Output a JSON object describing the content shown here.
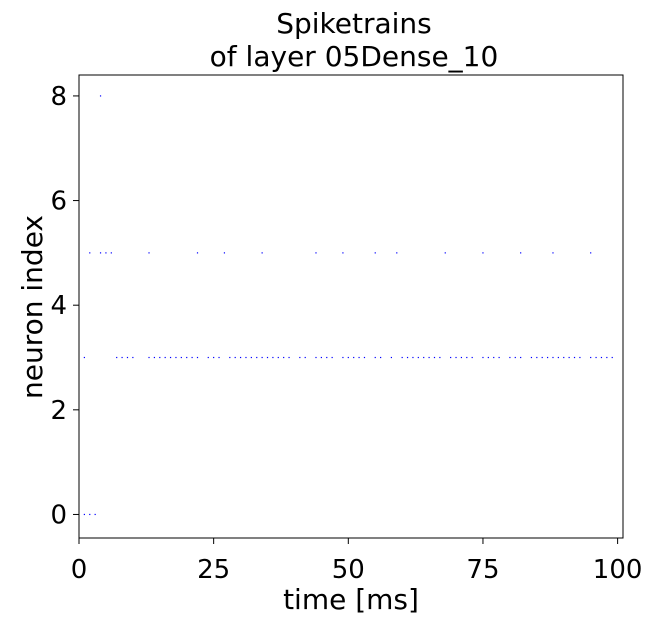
{
  "chart_data": {
    "type": "scatter",
    "title_line1": "Spiketrains",
    "title_line2": "of layer 05Dense_10",
    "xlabel": "time [ms]",
    "ylabel": "neuron index",
    "xlim": [
      0,
      101
    ],
    "ylim": [
      -0.45,
      8.4
    ],
    "xticks": [
      0,
      25,
      50,
      75,
      100
    ],
    "xtick_labels": [
      "0",
      "25",
      "50",
      "75",
      "100"
    ],
    "yticks": [
      0,
      2,
      4,
      6,
      8
    ],
    "ytick_labels": [
      "0",
      "2",
      "4",
      "6",
      "8"
    ],
    "grid": false,
    "marker_color": "#0000ff",
    "series": [
      {
        "neuron": 0,
        "x": [
          1,
          2,
          3
        ]
      },
      {
        "neuron": 3,
        "x": [
          1,
          7,
          8,
          9,
          10,
          13,
          14,
          15,
          16,
          17,
          18,
          19,
          20,
          21,
          22,
          24,
          25,
          26,
          28,
          29,
          30,
          31,
          32,
          33,
          34,
          35,
          36,
          37,
          38,
          39,
          41,
          42,
          44,
          45,
          46,
          47,
          49,
          50,
          51,
          52,
          53,
          55,
          56,
          58,
          60,
          61,
          62,
          63,
          64,
          65,
          66,
          67,
          69,
          70,
          71,
          72,
          73,
          75,
          76,
          77,
          78,
          80,
          81,
          82,
          84,
          85,
          86,
          87,
          88,
          89,
          90,
          91,
          92,
          93,
          95,
          96,
          97,
          98,
          99
        ]
      },
      {
        "neuron": 5,
        "x": [
          2,
          4,
          5,
          6,
          13,
          22,
          27,
          34,
          44,
          49,
          55,
          59,
          68,
          75,
          82,
          88,
          95
        ]
      },
      {
        "neuron": 8,
        "x": [
          4
        ]
      }
    ]
  }
}
